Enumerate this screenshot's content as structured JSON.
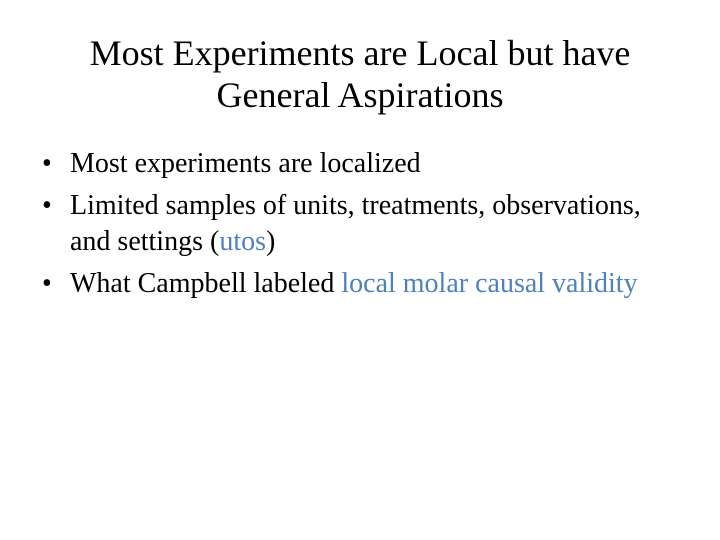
{
  "slide": {
    "title": "Most Experiments are Local but have General Aspirations",
    "bullet_glyph": "•",
    "accent_color": "#4f81bd",
    "bullets": [
      {
        "text": "Most experiments are localized"
      },
      {
        "text_before": "Limited samples of units, treatments, observations, and settings (",
        "highlight": "utos",
        "text_after": ")"
      },
      {
        "text_before": "What Campbell labeled ",
        "highlight": "local molar causal validity",
        "text_after": ""
      }
    ]
  }
}
